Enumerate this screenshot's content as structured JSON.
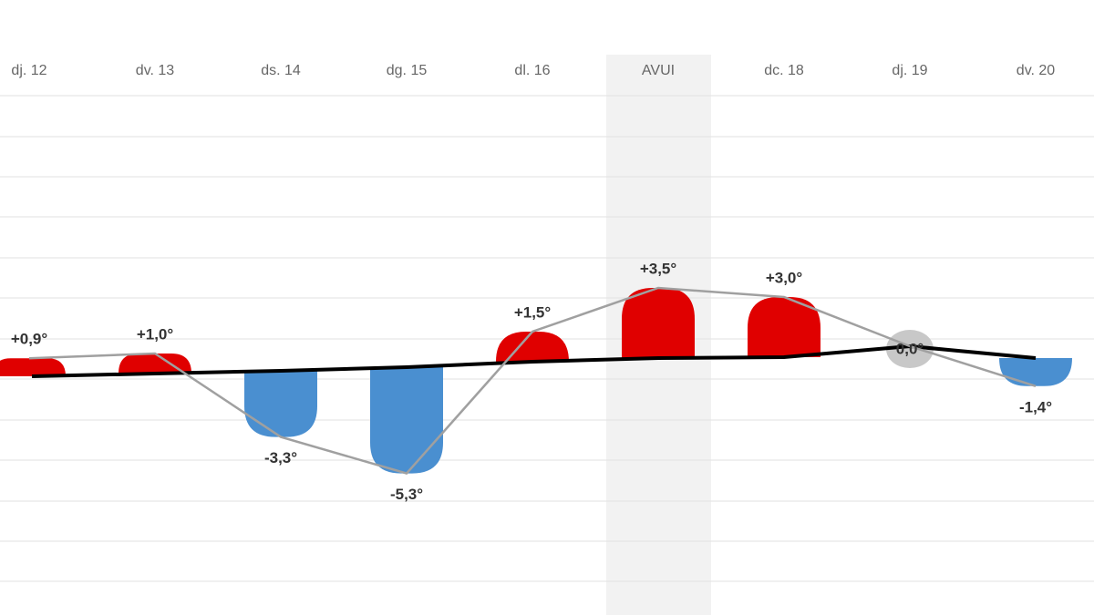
{
  "chart_data": {
    "type": "bar",
    "categories": [
      "dj. 12",
      "dv. 13",
      "ds. 14",
      "dg. 15",
      "dl. 16",
      "AVUI",
      "dc. 18",
      "dj. 19",
      "dv. 20"
    ],
    "values": [
      0.9,
      1.0,
      -3.3,
      -5.3,
      1.5,
      3.5,
      3.0,
      0.0,
      -1.4
    ],
    "value_labels": [
      "+0,9°",
      "+1,0°",
      "-3,3°",
      "-5,3°",
      "+1,5°",
      "+3,5°",
      "+3,0°",
      "0,0°",
      "-1,4°"
    ],
    "positive_color": "#e00000",
    "negative_color": "#4a8fd0",
    "zero_color": "#c8c8c8",
    "highlight_category": 5
  }
}
